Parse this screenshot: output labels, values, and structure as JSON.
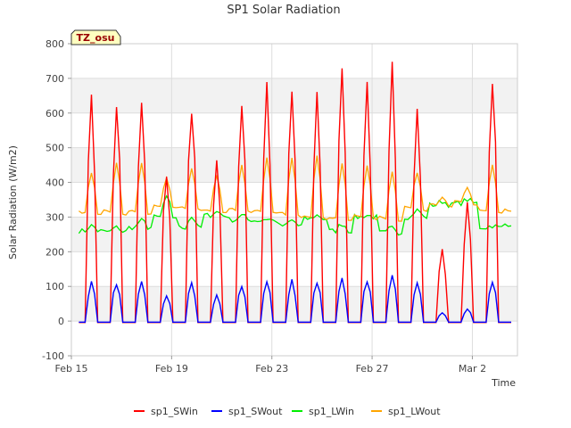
{
  "chart_data": {
    "type": "line",
    "title": "SP1 Solar Radiation",
    "xlabel": "Time",
    "ylabel": "Solar Radiation (W/m2)",
    "annotation": "TZ_osu",
    "ylim": [
      -100,
      800
    ],
    "yticks": [
      -100,
      0,
      100,
      200,
      300,
      400,
      500,
      600,
      700,
      800
    ],
    "xlim_days": [
      0,
      17.8
    ],
    "xticks": [
      {
        "day": 0,
        "label": "Feb 15"
      },
      {
        "day": 4,
        "label": "Feb 19"
      },
      {
        "day": 8,
        "label": "Feb 23"
      },
      {
        "day": 12,
        "label": "Feb 27"
      },
      {
        "day": 16,
        "label": "Mar 2"
      }
    ],
    "grid": true,
    "legend_position": "bottom",
    "days": [
      0,
      1,
      2,
      3,
      4,
      5,
      6,
      7,
      8,
      9,
      10,
      11,
      12,
      13,
      14,
      15,
      16,
      17
    ],
    "series": [
      {
        "name": "sp1_SWin",
        "color": "#ff0000",
        "daily_peak": [
          655,
          670,
          650,
          460,
          670,
          485,
          665,
          700,
          710,
          695,
          745,
          700,
          755,
          660,
          210,
          345,
          765,
          0
        ]
      },
      {
        "name": "sp1_SWout",
        "color": "#0000ff",
        "daily_peak": [
          118,
          120,
          115,
          75,
          118,
          80,
          112,
          120,
          122,
          120,
          128,
          122,
          135,
          112,
          25,
          35,
          130,
          0
        ]
      },
      {
        "name": "sp1_LWin",
        "color": "#00ee00",
        "night_level": [
          260,
          258,
          270,
          300,
          270,
          305,
          292,
          290,
          275,
          295,
          260,
          300,
          255,
          300,
          335,
          340,
          270,
          280
        ],
        "day_level": [
          275,
          270,
          290,
          355,
          300,
          315,
          305,
          295,
          290,
          305,
          280,
          305,
          270,
          320,
          345,
          350,
          275,
          280
        ]
      },
      {
        "name": "sp1_LWout",
        "color": "#ffa500",
        "night_level": [
          315,
          318,
          318,
          335,
          330,
          322,
          325,
          320,
          312,
          305,
          300,
          305,
          300,
          330,
          340,
          345,
          320,
          320
        ],
        "daily_peak": [
          430,
          455,
          455,
          410,
          440,
          420,
          450,
          470,
          470,
          480,
          455,
          450,
          430,
          430,
          355,
          385,
          450,
          320
        ]
      }
    ]
  }
}
